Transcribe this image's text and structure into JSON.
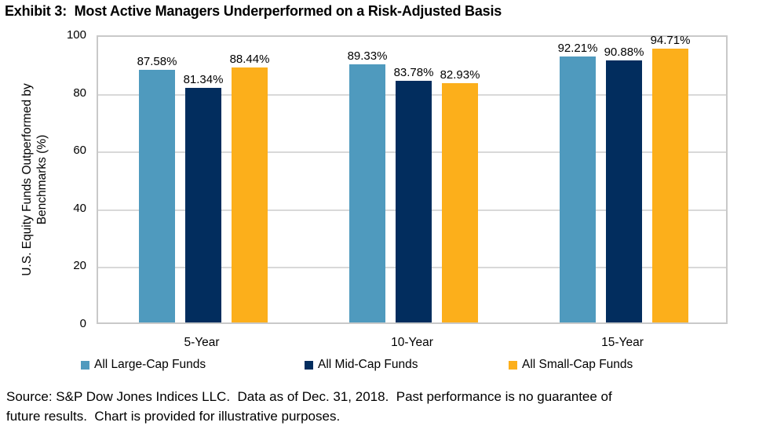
{
  "title": "Exhibit 3:  Most Active Managers Underperformed on a Risk-Adjusted Basis",
  "chart_data": {
    "type": "bar",
    "categories": [
      "5-Year",
      "10-Year",
      "15-Year"
    ],
    "series": [
      {
        "name": "All Large-Cap Funds",
        "color": "#4F9ABE",
        "values": [
          87.58,
          89.33,
          92.21
        ]
      },
      {
        "name": "All Mid-Cap Funds",
        "color": "#022D5E",
        "values": [
          81.34,
          83.78,
          90.88
        ]
      },
      {
        "name": "All Small-Cap Funds",
        "color": "#FCAF1B",
        "values": [
          88.44,
          82.93,
          94.71
        ]
      }
    ],
    "ylabel": "U.S. Equity Funds Outperformed by\nBenchmarks (%)",
    "xlabel": "",
    "yticks": [
      0,
      20,
      40,
      60,
      80,
      100
    ],
    "ylim": [
      0,
      100
    ],
    "grid": true,
    "legend_position": "bottom",
    "data_label_format": "0.00%"
  },
  "footer": {
    "source": "Source: S&P Dow Jones Indices LLC.  Data as of Dec. 31, 2018.  Past performance is no guarantee of\nfuture results.  Chart is provided for illustrative purposes."
  },
  "colors": {
    "grid": "#D9D9D9",
    "plot_border": "#C9C9C9",
    "text": "#000000",
    "background": "#FFFFFF"
  }
}
